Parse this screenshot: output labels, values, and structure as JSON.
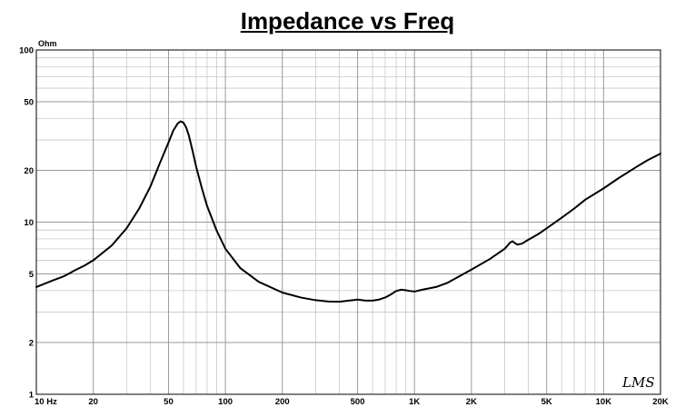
{
  "chart_data": {
    "type": "line",
    "title": "Impedance vs Freq",
    "ylabel_unit": "Ohm",
    "x_scale": "log",
    "y_scale": "log",
    "xlim": [
      10,
      20000
    ],
    "ylim": [
      1,
      100
    ],
    "grid": true,
    "x_ticks": [
      {
        "value": 10,
        "label": "10 Hz"
      },
      {
        "value": 20,
        "label": "20"
      },
      {
        "value": 50,
        "label": "50"
      },
      {
        "value": 100,
        "label": "100"
      },
      {
        "value": 200,
        "label": "200"
      },
      {
        "value": 500,
        "label": "500"
      },
      {
        "value": 1000,
        "label": "1K"
      },
      {
        "value": 2000,
        "label": "2K"
      },
      {
        "value": 5000,
        "label": "5K"
      },
      {
        "value": 10000,
        "label": "10K"
      },
      {
        "value": 20000,
        "label": "20K"
      }
    ],
    "y_ticks": [
      {
        "value": 1,
        "label": "1"
      },
      {
        "value": 2,
        "label": "2"
      },
      {
        "value": 5,
        "label": "5"
      },
      {
        "value": 10,
        "label": "10"
      },
      {
        "value": 20,
        "label": "20"
      },
      {
        "value": 50,
        "label": "50"
      },
      {
        "value": 100,
        "label": "100"
      }
    ],
    "series": [
      {
        "x": [
          10,
          12,
          14,
          15,
          16,
          18,
          20,
          25,
          30,
          35,
          40,
          45,
          50,
          53,
          56,
          58,
          60,
          62,
          64,
          67,
          70,
          75,
          80,
          90,
          100,
          120,
          150,
          200,
          250,
          300,
          350,
          400,
          450,
          480,
          500,
          550,
          600,
          650,
          700,
          750,
          800,
          850,
          900,
          950,
          1000,
          1100,
          1300,
          1500,
          1700,
          2000,
          2500,
          3000,
          3200,
          3300,
          3400,
          3500,
          3700,
          4000,
          4500,
          5000,
          6000,
          7000,
          8000,
          10000,
          12000,
          15000,
          17000,
          20000
        ],
        "y": [
          4.2,
          4.55,
          4.85,
          5.05,
          5.25,
          5.6,
          6.0,
          7.3,
          9.2,
          12.0,
          16.0,
          22.0,
          29.0,
          34.0,
          37.5,
          38.5,
          37.8,
          35.5,
          32.0,
          26.0,
          21.0,
          15.8,
          12.4,
          8.9,
          7.0,
          5.4,
          4.5,
          3.9,
          3.65,
          3.52,
          3.46,
          3.45,
          3.5,
          3.53,
          3.55,
          3.5,
          3.5,
          3.55,
          3.65,
          3.8,
          3.98,
          4.05,
          4.02,
          3.98,
          3.95,
          4.05,
          4.2,
          4.45,
          4.8,
          5.3,
          6.1,
          7.0,
          7.6,
          7.75,
          7.55,
          7.4,
          7.5,
          7.9,
          8.5,
          9.2,
          10.6,
          12.0,
          13.5,
          15.7,
          18.0,
          21.0,
          22.8,
          25.0
        ]
      }
    ],
    "logo_text": "LMS"
  }
}
